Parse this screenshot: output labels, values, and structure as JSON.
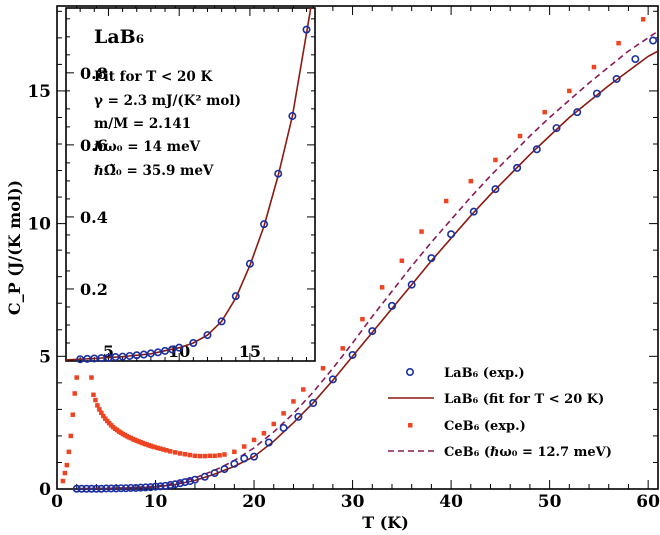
{
  "chart_data": [
    {
      "type": "scatter",
      "xlabel": "T (K)",
      "ylabel": "C_P (J/(K mol))",
      "xlim": [
        0,
        61
      ],
      "ylim": [
        0,
        18.2
      ],
      "xticks": [
        "0",
        "10",
        "20",
        "30",
        "40",
        "50",
        "60"
      ],
      "yticks": [
        "0",
        "5",
        "10",
        "15"
      ],
      "legend_position": "bottom-right",
      "legend": [
        "LaB₆ (exp.)",
        "LaB₆ (fit for T < 20 K)",
        "CeB₆ (exp.)",
        "CeB₆ (ℏω₀ = 12.7 meV)"
      ],
      "series": [
        {
          "name": "LaB₆ (exp.)",
          "kind": "points",
          "color": "#1a2ea0",
          "x": [
            2,
            2.5,
            3,
            3.5,
            4,
            4.5,
            5,
            5.5,
            6,
            6.5,
            7,
            7.5,
            8,
            8.5,
            9,
            9.5,
            10,
            10.5,
            11,
            11.5,
            12,
            12.5,
            13,
            13.5,
            14,
            15,
            16,
            17,
            18,
            19,
            20,
            21.5,
            23,
            24.5,
            26,
            28,
            30,
            32,
            34,
            36,
            38,
            40,
            42.3,
            44.5,
            46.7,
            48.7,
            50.7,
            52.8,
            54.8,
            56.8,
            58.7,
            60.5
          ],
          "y": [
            0.01,
            0.01,
            0.01,
            0.01,
            0.01,
            0.01,
            0.02,
            0.02,
            0.02,
            0.03,
            0.03,
            0.04,
            0.04,
            0.05,
            0.06,
            0.07,
            0.09,
            0.1,
            0.12,
            0.15,
            0.18,
            0.22,
            0.26,
            0.3,
            0.35,
            0.46,
            0.6,
            0.75,
            0.95,
            1.15,
            1.22,
            1.75,
            2.3,
            2.72,
            3.24,
            4.13,
            5.05,
            5.95,
            6.9,
            7.7,
            8.7,
            9.6,
            10.45,
            11.3,
            12.1,
            12.8,
            13.6,
            14.2,
            14.9,
            15.45,
            16.2,
            16.9
          ]
        },
        {
          "name": "LaB₆ (fit for T < 20 K)",
          "kind": "line",
          "color": "#8b1a10",
          "x": [
            2,
            5,
            8,
            10,
            12,
            14,
            16,
            18,
            20,
            22,
            24,
            26,
            28,
            30,
            32,
            34,
            36,
            38,
            40,
            42,
            44,
            46,
            48,
            50,
            52,
            54,
            56,
            58,
            60,
            61
          ],
          "y": [
            0.01,
            0.02,
            0.04,
            0.08,
            0.17,
            0.32,
            0.56,
            0.85,
            1.22,
            1.8,
            2.5,
            3.25,
            4.1,
            5.0,
            5.9,
            6.8,
            7.7,
            8.6,
            9.45,
            10.3,
            11.1,
            11.85,
            12.6,
            13.3,
            14.0,
            14.6,
            15.2,
            15.75,
            16.3,
            16.5
          ]
        },
        {
          "name": "CeB₆ (exp.)",
          "kind": "points",
          "color": "#ee4422",
          "x": [
            0.6,
            0.8,
            1.0,
            1.2,
            1.4,
            1.6,
            1.8,
            2.0,
            3.5,
            3.7,
            3.9,
            4.1,
            4.3,
            4.5,
            4.7,
            4.9,
            5.1,
            5.3,
            5.5,
            5.7,
            5.9,
            6.1,
            6.3,
            6.5,
            6.7,
            6.9,
            7.1,
            7.3,
            7.5,
            7.7,
            7.9,
            8.1,
            8.3,
            8.5,
            8.7,
            8.9,
            9.1,
            9.3,
            9.5,
            9.7,
            9.9,
            10.2,
            10.5,
            10.8,
            11.1,
            11.5,
            12,
            12.5,
            13,
            13.5,
            14,
            14.5,
            15,
            15.5,
            16,
            16.5,
            17,
            18,
            19,
            20,
            21,
            22,
            23,
            24,
            25,
            27,
            29,
            31,
            33,
            35,
            37,
            39.5,
            42,
            44.5,
            47,
            49.5,
            52,
            54.5,
            57,
            59.5
          ],
          "y": [
            0.3,
            0.6,
            0.9,
            1.4,
            2.0,
            2.8,
            3.6,
            4.2,
            4.2,
            3.55,
            3.35,
            3.15,
            3.0,
            2.87,
            2.75,
            2.65,
            2.56,
            2.48,
            2.4,
            2.33,
            2.27,
            2.22,
            2.16,
            2.12,
            2.07,
            2.03,
            1.99,
            1.95,
            1.92,
            1.88,
            1.85,
            1.82,
            1.79,
            1.76,
            1.73,
            1.7,
            1.68,
            1.65,
            1.63,
            1.6,
            1.58,
            1.55,
            1.52,
            1.49,
            1.46,
            1.42,
            1.38,
            1.34,
            1.31,
            1.28,
            1.25,
            1.24,
            1.24,
            1.25,
            1.25,
            1.27,
            1.3,
            1.4,
            1.6,
            1.85,
            2.1,
            2.45,
            2.85,
            3.3,
            3.75,
            4.55,
            5.3,
            6.4,
            7.6,
            8.6,
            9.7,
            10.85,
            11.6,
            12.4,
            13.3,
            14.2,
            15.0,
            15.9,
            16.8,
            17.7
          ]
        },
        {
          "name": "CeB₆ (ℏω₀ = 12.7 meV)",
          "kind": "line",
          "style": "dashed",
          "color": "#8b1a55",
          "x": [
            2,
            6,
            10,
            12,
            14,
            16,
            18,
            20,
            22,
            24,
            26,
            28,
            30,
            32,
            34,
            36,
            38,
            40,
            42,
            44,
            46,
            48,
            50,
            52,
            54,
            56,
            58,
            60,
            61
          ],
          "y": [
            0.01,
            0.03,
            0.1,
            0.22,
            0.42,
            0.7,
            1.07,
            1.55,
            2.15,
            2.85,
            3.65,
            4.55,
            5.5,
            6.5,
            7.45,
            8.4,
            9.3,
            10.15,
            11.0,
            11.8,
            12.55,
            13.3,
            14.0,
            14.65,
            15.3,
            15.9,
            16.5,
            17.0,
            17.25
          ]
        }
      ]
    },
    {
      "type": "scatter",
      "title": "LaB₆",
      "xlim": [
        2,
        19.6
      ],
      "ylim": [
        0,
        0.98
      ],
      "xticks": [
        "5",
        "10",
        "15"
      ],
      "yticks": [
        "0.2",
        "0.4",
        "0.6",
        "0.8"
      ],
      "annotations": [
        "Fit for T < 20 K",
        "γ = 2.3 mJ/(K² mol)",
        "m/M = 2.141",
        "ℏω₀ = 14 meV",
        "ℏΩ̃₀ = 35.9 meV"
      ],
      "series": [
        {
          "name": "LaB₆ (exp.)",
          "kind": "points",
          "color": "#1a2ea0",
          "x": [
            3,
            3.5,
            4,
            4.5,
            5,
            5.5,
            6,
            6.5,
            7,
            7.5,
            8,
            8.5,
            9,
            9.5,
            10,
            11,
            12,
            13,
            14,
            15,
            16,
            17,
            18,
            19
          ],
          "y": [
            0.005,
            0.006,
            0.007,
            0.008,
            0.009,
            0.011,
            0.012,
            0.014,
            0.016,
            0.018,
            0.021,
            0.024,
            0.028,
            0.032,
            0.037,
            0.05,
            0.072,
            0.11,
            0.18,
            0.27,
            0.38,
            0.52,
            0.68,
            0.92
          ]
        },
        {
          "name": "LaB₆ (fit for T < 20 K)",
          "kind": "line",
          "color": "#8b1a10",
          "x": [
            2,
            4,
            6,
            8,
            10,
            11,
            12,
            13,
            14,
            15,
            16,
            17,
            18,
            19,
            19.6
          ],
          "y": [
            0.003,
            0.007,
            0.012,
            0.02,
            0.037,
            0.05,
            0.072,
            0.11,
            0.175,
            0.265,
            0.375,
            0.515,
            0.68,
            0.91,
            1.05
          ]
        }
      ]
    }
  ]
}
